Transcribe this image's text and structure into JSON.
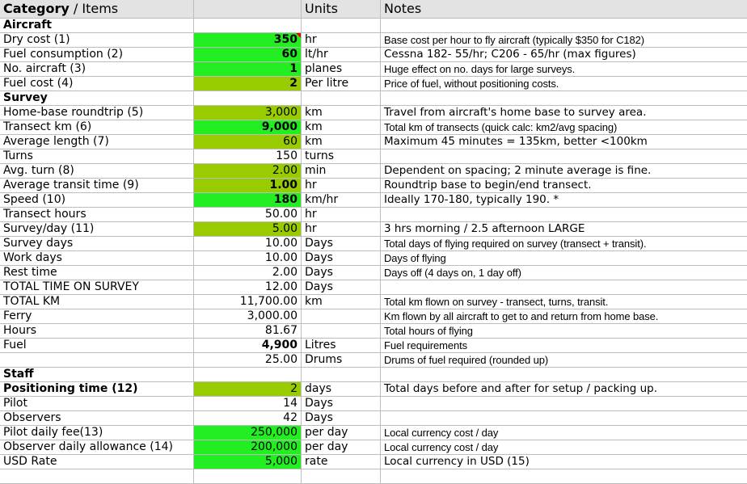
{
  "header": {
    "category": "Category",
    "items": " / Items",
    "units": "Units",
    "notes": "Notes"
  },
  "rows": [
    {
      "type": "section",
      "category": "Aircraft"
    },
    {
      "category": "Dry cost (1)",
      "value": "350",
      "unit": "hr",
      "note": "Base cost per hour to fly aircraft (typically $350 for C182)",
      "fill": "bright",
      "bold_value": true,
      "small_note": true,
      "comment": true
    },
    {
      "category": "Fuel consumption (2)",
      "value": "60",
      "unit": "lt/hr",
      "note": "Cessna 182- 55/hr; C206 - 65/hr (max figures)",
      "fill": "bright",
      "bold_value": true
    },
    {
      "category": "No. aircraft (3)",
      "value": "1",
      "unit": "planes",
      "note": "Huge effect on no. days for large surveys.",
      "fill": "bright",
      "bold_value": true,
      "small_note": true
    },
    {
      "category": "Fuel cost (4)",
      "value": "2",
      "unit": "Per litre",
      "note": "Price of fuel, without positioning costs.",
      "fill": "olive",
      "bold_value": true,
      "small_note": true
    },
    {
      "type": "section",
      "category": "Survey"
    },
    {
      "category": "Home-base roundtrip (5)",
      "value": "3,000",
      "unit": "km",
      "note": "Travel from aircraft's home base to survey area.",
      "fill": "olive"
    },
    {
      "category": "Transect km (6)",
      "value": "9,000",
      "unit": "km",
      "note": "Total km of transects (quick calc: km2/avg spacing)",
      "fill": "bright",
      "bold_value": true,
      "small_note": true
    },
    {
      "category": "Average length (7)",
      "value": "60",
      "unit": "km",
      "note": "Maximum 45 minutes = 135km, better <100km",
      "fill": "olive"
    },
    {
      "category": "Turns",
      "value": "150",
      "unit": "turns",
      "note": ""
    },
    {
      "category": "Avg. turn (8)",
      "value": "2.00",
      "unit": "min",
      "note": "Dependent on spacing; 2 minute average is fine.",
      "fill": "olive"
    },
    {
      "category": "Average transit time (9)",
      "value": "1.00",
      "unit": "hr",
      "note": "Roundtrip base to begin/end transect.",
      "fill": "olive",
      "bold_value": true
    },
    {
      "category": "Speed (10)",
      "value": "180",
      "unit": "km/hr",
      "note": "Ideally 170-180, typically 190. *",
      "fill": "bright",
      "bold_value": true
    },
    {
      "category": "Transect hours",
      "value": "50.00",
      "unit": "hr",
      "note": ""
    },
    {
      "category": "Survey/day (11)",
      "value": "5.00",
      "unit": "hr",
      "note": "3 hrs morning / 2.5 afternoon LARGE",
      "fill": "olive"
    },
    {
      "category": "Survey days",
      "value": "10.00",
      "unit": "Days",
      "note": "Total days of flying required on survey (transect + transit).",
      "small_note": true
    },
    {
      "category": "Work days",
      "value": "10.00",
      "unit": "Days",
      "note": "Days of flying",
      "small_note": true
    },
    {
      "category": "Rest time",
      "value": "2.00",
      "unit": "Days",
      "note": "Days off (4 days on, 1 day off)",
      "small_note": true
    },
    {
      "category": "TOTAL TIME ON SURVEY",
      "value": "12.00",
      "unit": "Days",
      "note": ""
    },
    {
      "category": "TOTAL KM",
      "value": "11,700.00",
      "unit": "km",
      "note": "Total km flown on survey - transect, turns, transit.",
      "small_note": true
    },
    {
      "category": "Ferry",
      "value": "3,000.00",
      "unit": "",
      "note": "Km flown by all aircraft to get to and return from home base.",
      "small_note": true
    },
    {
      "category": "Hours",
      "value": "81.67",
      "unit": "",
      "note": "Total hours of flying",
      "small_note": true
    },
    {
      "category": "Fuel",
      "value": "4,900",
      "unit": "Litres",
      "note": "Fuel requirements",
      "bold_value": true,
      "small_note": true
    },
    {
      "category": "",
      "value": "25.00",
      "unit": "Drums",
      "note": "Drums of fuel required (rounded up)",
      "small_note": true
    },
    {
      "type": "section",
      "category": "Staff"
    },
    {
      "category": "Positioning time (12)",
      "value": "2",
      "unit": "days",
      "note": "Total days before and after for setup / packing up.",
      "fill": "olive",
      "bold_cat": true
    },
    {
      "category": "Pilot",
      "value": "14",
      "unit": "Days",
      "note": ""
    },
    {
      "category": "Observers",
      "value": "42",
      "unit": "Days",
      "note": ""
    },
    {
      "category": "Pilot daily fee(13)",
      "value": "250,000",
      "unit": "per day",
      "note": "Local currency cost / day",
      "fill": "bright",
      "small_note": true
    },
    {
      "category": "Observer daily allowance (14)",
      "value": "200,000",
      "unit": "per day",
      "note": "Local currency cost / day",
      "fill": "bright",
      "small_note": true
    },
    {
      "category": "USD Rate",
      "value": "5,000",
      "unit": "rate",
      "note": "Local currency in USD (15)",
      "fill": "bright"
    },
    {
      "category": "",
      "value": "",
      "unit": "",
      "note": ""
    }
  ]
}
